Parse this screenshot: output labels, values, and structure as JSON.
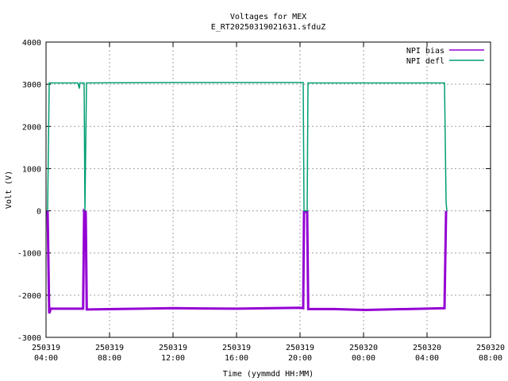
{
  "chart_data": {
    "type": "line",
    "title": "Voltages for MEX",
    "subtitle": "E_RT20250319021631.sfduZ",
    "x_label": "Time (yymmdd HH:MM)",
    "y_label": "Volt (V)",
    "xlim": [
      "250319 04:00",
      "250320 08:00"
    ],
    "xticks": [
      "250319 04:00",
      "250319 08:00",
      "250319 12:00",
      "250319 16:00",
      "250319 20:00",
      "250320 00:00",
      "250320 04:00",
      "250320 08:00"
    ],
    "ylim": [
      -3000,
      4000
    ],
    "yticks": [
      -3000,
      -2000,
      -1000,
      0,
      1000,
      2000,
      3000,
      4000
    ],
    "grid": true,
    "legend": "top-right",
    "series": [
      {
        "name": "NPI bias",
        "color": "#9400d3",
        "x": [
          "250319 04:06",
          "250319 04:12",
          "250319 04:18",
          "250319 06:20",
          "250319 06:24",
          "250319 06:30",
          "250319 06:34",
          "250319 12:00",
          "250319 16:00",
          "250319 20:00",
          "250319 20:12",
          "250319 20:15",
          "250319 20:27",
          "250319 20:31",
          "250319 22:09",
          "250320 00:06",
          "250320 05:06",
          "250320 05:12"
        ],
        "values": [
          0,
          -2430,
          -2320,
          -2320,
          0,
          -30,
          -2340,
          -2310,
          -2320,
          -2300,
          -2310,
          -20,
          -20,
          -2330,
          -2330,
          -2350,
          -2310,
          0
        ]
      },
      {
        "name": "NPI defl",
        "color": "#009e73",
        "x": [
          "250319 04:06",
          "250319 04:12",
          "250319 06:00",
          "250319 06:06",
          "250319 06:08",
          "250319 06:24",
          "250319 06:27",
          "250319 06:33",
          "250319 12:00",
          "250319 20:12",
          "250319 20:15",
          "250319 20:27",
          "250319 20:30",
          "250320 00:00",
          "250320 05:06",
          "250320 05:12",
          "250320 05:15"
        ],
        "values": [
          0,
          3030,
          3030,
          2900,
          3030,
          3030,
          0,
          3030,
          3040,
          3040,
          0,
          0,
          3030,
          3030,
          3030,
          200,
          0
        ]
      }
    ]
  }
}
